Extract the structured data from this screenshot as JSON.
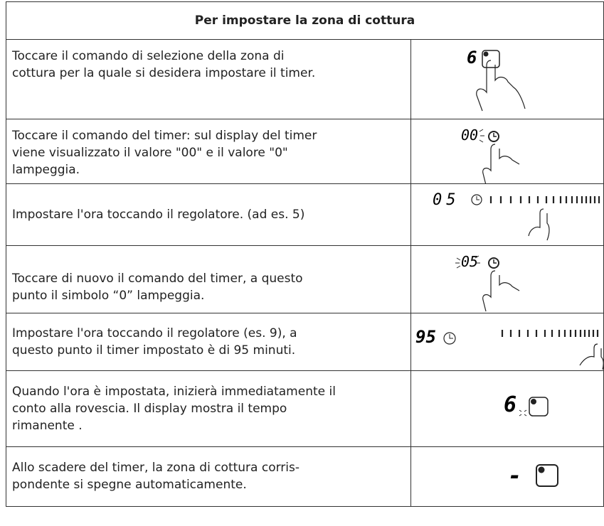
{
  "header": {
    "title": "Per impostare la zona di cottura"
  },
  "table": {
    "rows": [
      {
        "lines": [
          "Toccare il comando di selezione della zona di",
          "cottura per la quale si desidera impostare il timer."
        ],
        "display": "6"
      },
      {
        "lines": [
          "Toccare il comando del timer: sul display del timer",
          "viene visualizzato il valore \"00\" e il valore \"0\"",
          "lampeggia."
        ],
        "display": "00"
      },
      {
        "lines": [
          "Impostare l'ora toccando il regolatore. (ad es. 5)"
        ],
        "display": "05"
      },
      {
        "lines": [
          "Toccare di nuovo il comando del timer, a questo",
          "punto il simbolo “0” lampeggia."
        ],
        "display": "05"
      },
      {
        "lines": [
          "Impostare l'ora toccando il regolatore (es. 9), a",
          "questo punto il timer impostato è di 95 minuti."
        ],
        "display": "95"
      },
      {
        "lines": [
          "Quando l'ora è impostata, inizierà immediatamente il",
          "conto alla rovescia. Il display mostra il tempo",
          "rimanente ."
        ],
        "display": "6"
      },
      {
        "lines": [
          "Allo scadere del timer, la zona di cottura corris-",
          "pondente si spegne automaticamente."
        ],
        "display": "-"
      }
    ]
  }
}
